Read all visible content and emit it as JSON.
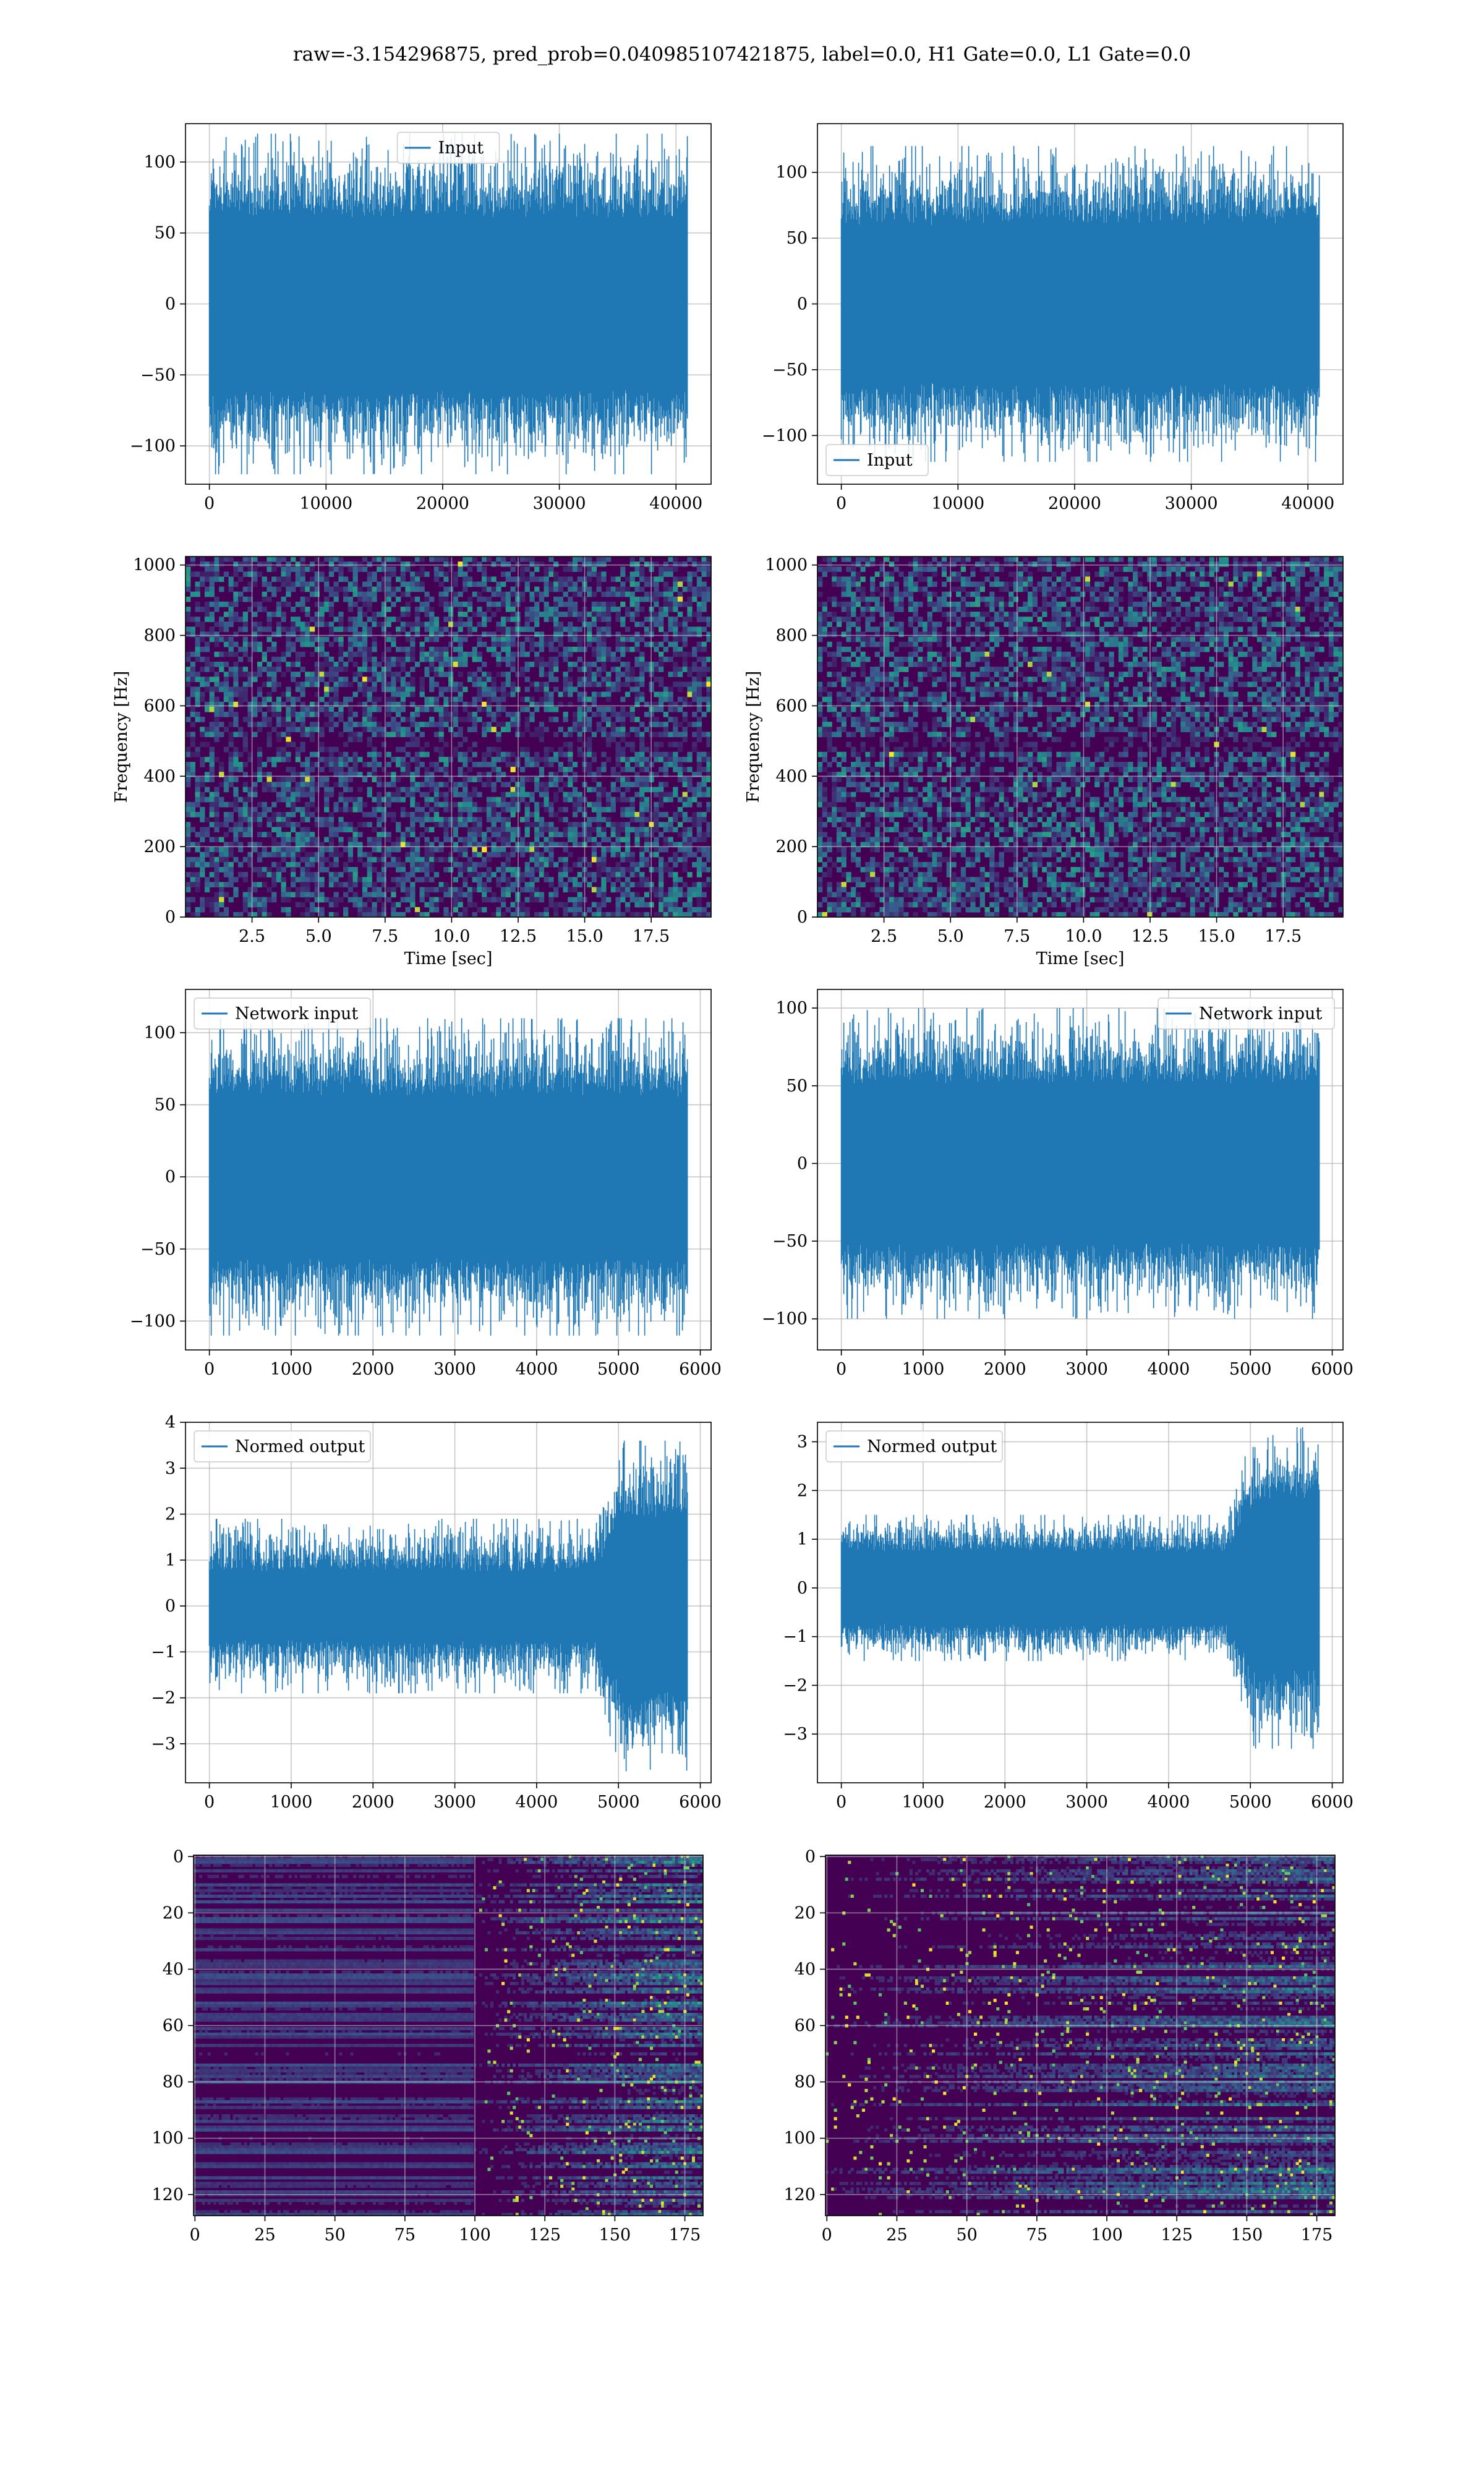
{
  "figure": {
    "title": "raw=-3.154296875, pred_prob=0.040985107421875, label=0.0, H1 Gate=0.0, L1 Gate=0.0"
  },
  "colors": {
    "line": "#1f77b4",
    "grid": "#b0b0b0",
    "viridis_dark": "#440154",
    "viridis_mid": "#21918c",
    "viridis_bright": "#fde725"
  },
  "chart_data": [
    {
      "id": "row1-left",
      "type": "line",
      "series": [
        {
          "name": "Input",
          "envelope": 65,
          "spike_max": 120,
          "n_samples": 40960
        }
      ],
      "legend": "upper-center",
      "xlim": [
        -2048,
        43008
      ],
      "ylim": [
        -127,
        127
      ],
      "xticks": [
        0,
        10000,
        20000,
        30000,
        40000
      ],
      "xtick_labels": [
        "0",
        "10000",
        "20000",
        "30000",
        "40000"
      ],
      "yticks": [
        100,
        50,
        0,
        -50,
        -100
      ],
      "ytick_labels": [
        "100",
        "50",
        "0",
        "−50",
        "−100"
      ],
      "xlabel": "",
      "ylabel": "",
      "grid": true
    },
    {
      "id": "row1-right",
      "type": "line",
      "series": [
        {
          "name": "Input",
          "envelope": 65,
          "spike_max": 120,
          "n_samples": 40960
        }
      ],
      "legend": "lower-left",
      "xlim": [
        -2048,
        43008
      ],
      "ylim": [
        -137,
        137
      ],
      "xticks": [
        0,
        10000,
        20000,
        30000,
        40000
      ],
      "xtick_labels": [
        "0",
        "10000",
        "20000",
        "30000",
        "40000"
      ],
      "yticks": [
        100,
        50,
        0,
        -50,
        -100
      ],
      "ytick_labels": [
        "100",
        "50",
        "0",
        "−50",
        "−100"
      ],
      "xlabel": "",
      "ylabel": "",
      "grid": true
    },
    {
      "id": "row2-left",
      "type": "heatmap",
      "colormap": "viridis",
      "xlim": [
        0,
        19.75
      ],
      "ylim": [
        0,
        1024
      ],
      "xticks": [
        2.5,
        5.0,
        7.5,
        10.0,
        12.5,
        15.0,
        17.5
      ],
      "xtick_labels": [
        "2.5",
        "5.0",
        "7.5",
        "10.0",
        "12.5",
        "15.0",
        "17.5"
      ],
      "yticks": [
        0,
        200,
        400,
        600,
        800,
        1000
      ],
      "ytick_labels": [
        "0",
        "200",
        "400",
        "600",
        "800",
        "1000"
      ],
      "xlabel": "Time [sec]",
      "ylabel": "Frequency [Hz]",
      "grid": true
    },
    {
      "id": "row2-right",
      "type": "heatmap",
      "colormap": "viridis",
      "xlim": [
        0,
        19.75
      ],
      "ylim": [
        0,
        1024
      ],
      "xticks": [
        2.5,
        5.0,
        7.5,
        10.0,
        12.5,
        15.0,
        17.5
      ],
      "xtick_labels": [
        "2.5",
        "5.0",
        "7.5",
        "10.0",
        "12.5",
        "15.0",
        "17.5"
      ],
      "yticks": [
        0,
        200,
        400,
        600,
        800,
        1000
      ],
      "ytick_labels": [
        "0",
        "200",
        "400",
        "600",
        "800",
        "1000"
      ],
      "xlabel": "Time [sec]",
      "ylabel": "Frequency [Hz]",
      "grid": true
    },
    {
      "id": "row3-left",
      "type": "line",
      "series": [
        {
          "name": "Network input",
          "envelope": 60,
          "spike_max": 110,
          "n_samples": 5840
        }
      ],
      "legend": "upper-left",
      "xlim": [
        -292,
        6132
      ],
      "ylim": [
        -120,
        130
      ],
      "xticks": [
        0,
        1000,
        2000,
        3000,
        4000,
        5000,
        6000
      ],
      "xtick_labels": [
        "0",
        "1000",
        "2000",
        "3000",
        "4000",
        "5000",
        "6000"
      ],
      "yticks": [
        100,
        50,
        0,
        -50,
        -100
      ],
      "ytick_labels": [
        "100",
        "50",
        "0",
        "−50",
        "−100"
      ],
      "xlabel": "",
      "ylabel": "",
      "grid": true
    },
    {
      "id": "row3-right",
      "type": "line",
      "series": [
        {
          "name": "Network input",
          "envelope": 55,
          "spike_max": 100,
          "n_samples": 5840
        }
      ],
      "legend": "upper-right",
      "xlim": [
        -292,
        6132
      ],
      "ylim": [
        -120,
        112
      ],
      "xticks": [
        0,
        1000,
        2000,
        3000,
        4000,
        5000,
        6000
      ],
      "xtick_labels": [
        "0",
        "1000",
        "2000",
        "3000",
        "4000",
        "5000",
        "6000"
      ],
      "yticks": [
        100,
        50,
        0,
        -50,
        -100
      ],
      "ytick_labels": [
        "100",
        "50",
        "0",
        "−50",
        "−100"
      ],
      "xlabel": "",
      "ylabel": "",
      "grid": true
    },
    {
      "id": "row4-left",
      "type": "line",
      "series": [
        {
          "name": "Normed output",
          "envelope": 0.8,
          "spike_max": 1.9,
          "late_start": 4700,
          "late_envelope": 2.0,
          "late_spike_max": 3.6,
          "n_samples": 5840
        }
      ],
      "legend": "upper-left",
      "xlim": [
        -292,
        6132
      ],
      "ylim": [
        -3.85,
        4.0
      ],
      "xticks": [
        0,
        1000,
        2000,
        3000,
        4000,
        5000,
        6000
      ],
      "xtick_labels": [
        "0",
        "1000",
        "2000",
        "3000",
        "4000",
        "5000",
        "6000"
      ],
      "yticks": [
        4,
        3,
        2,
        1,
        0,
        -1,
        -2,
        -3
      ],
      "ytick_labels": [
        "4",
        "3",
        "2",
        "1",
        "0",
        "−1",
        "−2",
        "−3"
      ],
      "xlabel": "",
      "ylabel": "",
      "grid": true
    },
    {
      "id": "row4-right",
      "type": "line",
      "series": [
        {
          "name": "Normed output",
          "envelope": 0.8,
          "spike_max": 1.5,
          "late_start": 4700,
          "late_envelope": 1.8,
          "late_spike_max": 3.3,
          "n_samples": 5840
        }
      ],
      "legend": "upper-left",
      "xlim": [
        -292,
        6132
      ],
      "ylim": [
        -4.0,
        3.4
      ],
      "xticks": [
        0,
        1000,
        2000,
        3000,
        4000,
        5000,
        6000
      ],
      "xtick_labels": [
        "0",
        "1000",
        "2000",
        "3000",
        "4000",
        "5000",
        "6000"
      ],
      "yticks": [
        3,
        2,
        1,
        0,
        -1,
        -2,
        -3
      ],
      "ytick_labels": [
        "3",
        "2",
        "1",
        "0",
        "−1",
        "−2",
        "−3"
      ],
      "xlabel": "",
      "ylabel": "",
      "grid": true
    },
    {
      "id": "row5-left",
      "type": "heatmap",
      "colormap": "viridis",
      "activity_onset": 100,
      "xlim": [
        -0.5,
        181.5
      ],
      "ylim": [
        127.5,
        -0.5
      ],
      "xticks": [
        0,
        25,
        50,
        75,
        100,
        125,
        150,
        175
      ],
      "xtick_labels": [
        "0",
        "25",
        "50",
        "75",
        "100",
        "125",
        "150",
        "175"
      ],
      "yticks": [
        0,
        20,
        40,
        60,
        80,
        100,
        120
      ],
      "ytick_labels": [
        "0",
        "20",
        "40",
        "60",
        "80",
        "100",
        "120"
      ],
      "xlabel": "",
      "ylabel": "",
      "grid": true
    },
    {
      "id": "row5-right",
      "type": "heatmap",
      "colormap": "viridis",
      "activity_onset": 0,
      "xlim": [
        -0.5,
        181.5
      ],
      "ylim": [
        127.5,
        -0.5
      ],
      "xticks": [
        0,
        25,
        50,
        75,
        100,
        125,
        150,
        175
      ],
      "xtick_labels": [
        "0",
        "25",
        "50",
        "75",
        "100",
        "125",
        "150",
        "175"
      ],
      "yticks": [
        0,
        20,
        40,
        60,
        80,
        100,
        120
      ],
      "ytick_labels": [
        "0",
        "20",
        "40",
        "60",
        "80",
        "100",
        "120"
      ],
      "xlabel": "",
      "ylabel": "",
      "grid": true
    }
  ]
}
